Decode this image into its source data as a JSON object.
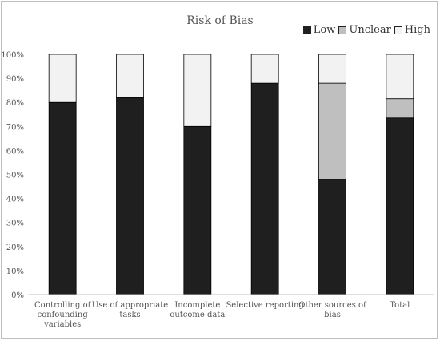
{
  "chart_data": {
    "type": "bar",
    "stacked": true,
    "title": "Risk of Bias",
    "categories": [
      [
        "Controlling of",
        "confounding",
        "variables"
      ],
      [
        "Use of appropriate",
        "tasks"
      ],
      [
        "Incomplete",
        "outcome data"
      ],
      [
        "Selective reporting"
      ],
      [
        "Other sources of",
        "bias"
      ],
      [
        "Total"
      ]
    ],
    "series": [
      {
        "name": "Low",
        "color": "#1f1f1f",
        "values": [
          80,
          82,
          70,
          88,
          48,
          73.5
        ]
      },
      {
        "name": "Unclear",
        "color": "#bfbfbf",
        "values": [
          0,
          0,
          0,
          0,
          40,
          8
        ]
      },
      {
        "name": "High",
        "color": "#f2f2f2",
        "values": [
          20,
          18,
          30,
          12,
          12,
          18.5
        ]
      }
    ],
    "yticks": [
      "0%",
      "10%",
      "20%",
      "30%",
      "40%",
      "50%",
      "60%",
      "70%",
      "80%",
      "90%",
      "100%"
    ],
    "ylim": [
      0,
      100
    ],
    "grid": false,
    "legend_position": "top-right"
  }
}
